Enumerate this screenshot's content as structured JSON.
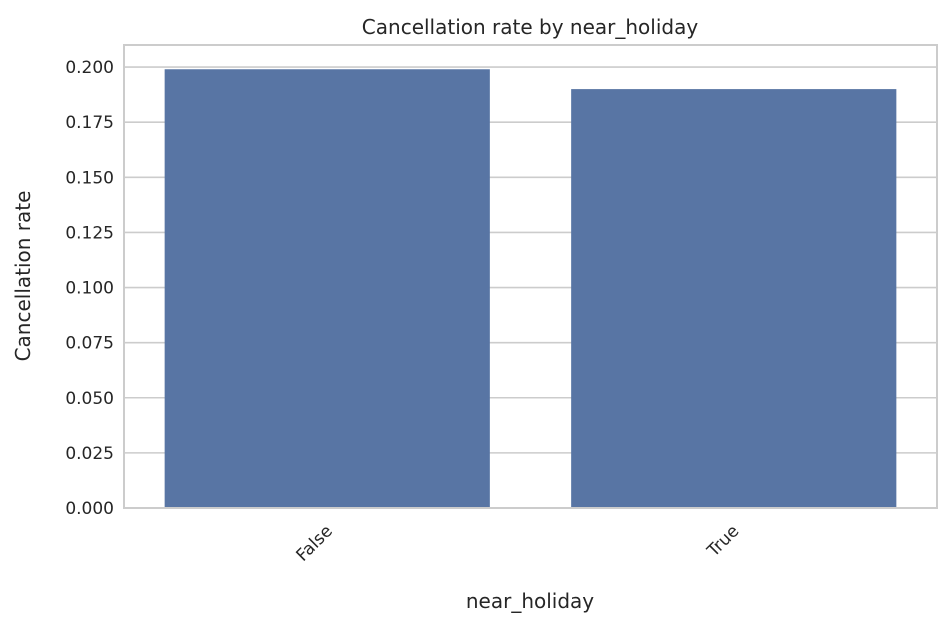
{
  "chart_data": {
    "type": "bar",
    "title": "Cancellation rate by near_holiday",
    "xlabel": "near_holiday",
    "ylabel": "Cancellation rate",
    "categories": [
      "False",
      "True"
    ],
    "values": [
      0.199,
      0.19
    ],
    "ylim": [
      0,
      0.21
    ],
    "yticks": [
      0.0,
      0.025,
      0.05,
      0.075,
      0.1,
      0.125,
      0.15,
      0.175,
      0.2
    ],
    "ytick_labels": [
      "0.000",
      "0.025",
      "0.050",
      "0.075",
      "0.100",
      "0.125",
      "0.150",
      "0.175",
      "0.200"
    ],
    "grid": "horizontal",
    "bar_color": "#5875a4",
    "xtick_rotation": "45"
  }
}
